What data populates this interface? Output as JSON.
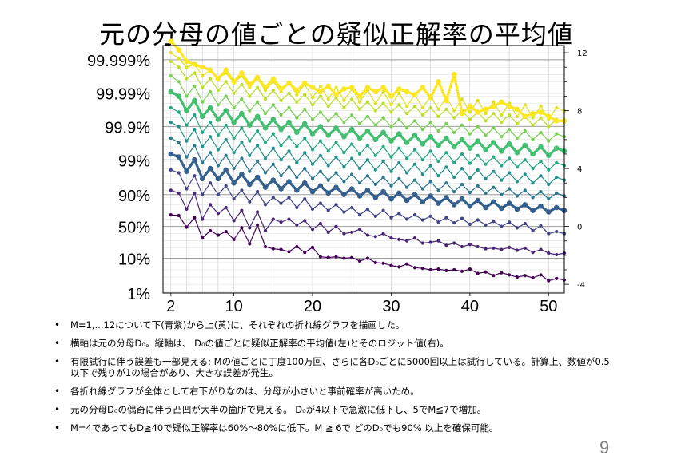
{
  "slide": {
    "title": "元の分母の値ごとの疑似正解率の平均値",
    "page_number": "9"
  },
  "bullets": [
    {
      "text": "M=1,..,12について下(青紫)から上(黄)に、それぞれの折れ線グラフを描画した。"
    },
    {
      "text": "横軸は元の分母D₀。縦軸は、 D₀の値ごとに疑似正解率の平均値(左)とそのロジット値(右)。"
    },
    {
      "text": "有限試行に伴う誤差も一部見える: Mの値ごとに丁度100万回、さらに各D₀ごとに5000回以上は試行している。計算上、数値が0.5以下で残りが1の場合があり、大きな誤差が発生。"
    },
    {
      "text": "各折れ線グラフが全体として右下がりなのは、分母が小さいと事前確率が高いため。"
    },
    {
      "text": "元の分母D₀の偶奇に伴う凸凹が大半の箇所で見える。 D₀が4以下で急激に低下し、5でM≦7で増加。"
    },
    {
      "text": "M=4であってもD≧40で疑似正解率は60%〜80%に低下。M ≧ 6で どのD₀でも90% 以上を確保可能。"
    }
  ],
  "chart_data": {
    "type": "line",
    "title": "元の分母の値ごとの疑似正解率の平均値",
    "x_tick_labels": [
      "2",
      "10",
      "20",
      "30",
      "40",
      "50"
    ],
    "xlim": [
      1,
      52
    ],
    "left_y_tick_labels": [
      "1%",
      "10%",
      "50%",
      "90%",
      "99%",
      "99.9%",
      "99.99%",
      "99.999%"
    ],
    "right_y_tick_labels": [
      "-4",
      "0",
      "4",
      "8",
      "12"
    ],
    "right_ylim": [
      -4.6,
      12.5
    ],
    "grid": true,
    "colors": [
      "#440154",
      "#482576",
      "#414487",
      "#35608d",
      "#2a788e",
      "#21918c",
      "#22a884",
      "#43bf71",
      "#7ad151",
      "#bddf26",
      "#dfe318",
      "#fde725"
    ],
    "series": [
      {
        "values": [
          0.8,
          0.75,
          -0.05,
          0.6,
          -0.8,
          -0.3,
          -0.6,
          -0.35,
          -0.9,
          -0.1,
          -1.2,
          0.1,
          -1.4,
          -1.55,
          -1.6,
          -1.75,
          -1.4,
          -1.8,
          -1.45,
          -2.1,
          -2.15,
          -2.1,
          -2.2,
          -2.15,
          -2.4,
          -2.2,
          -2.5,
          -2.55,
          -2.7,
          -2.8,
          -2.6,
          -2.85,
          -2.9,
          -3.0,
          -2.95,
          -3.05,
          -3.0,
          -3.1,
          -2.95,
          -3.25,
          -3.15,
          -3.4,
          -3.2,
          -3.35,
          -3.5,
          -3.4,
          -3.55,
          -3.35,
          -3.75,
          -3.6,
          -3.7
        ]
      },
      {
        "values": [
          2.5,
          2.3,
          1.2,
          2.3,
          0.5,
          1.5,
          0.9,
          1.3,
          0.4,
          1.1,
          -0.1,
          1.0,
          -0.3,
          0.5,
          0.3,
          0.5,
          0.1,
          0.4,
          -0.2,
          0.2,
          -0.4,
          0.0,
          -0.5,
          -0.4,
          -0.2,
          -0.6,
          -0.7,
          -0.5,
          -0.8,
          -0.9,
          -1.0,
          -0.8,
          -1.15,
          -1.1,
          -1.0,
          -1.3,
          -1.15,
          -1.4,
          -1.25,
          -1.4,
          -1.55,
          -1.5,
          -1.6,
          -1.45,
          -1.65,
          -1.5,
          -1.8,
          -1.6,
          -1.85,
          -1.95,
          -1.85
        ]
      },
      {
        "values": [
          3.9,
          3.7,
          2.6,
          3.5,
          2.2,
          3.0,
          2.2,
          2.8,
          1.9,
          2.5,
          1.7,
          2.4,
          1.5,
          2.0,
          1.6,
          2.0,
          1.3,
          1.9,
          1.2,
          1.6,
          1.1,
          1.5,
          1.0,
          1.3,
          0.8,
          1.2,
          0.7,
          1.1,
          0.6,
          0.9,
          0.5,
          0.8,
          0.45,
          0.7,
          0.3,
          0.6,
          0.25,
          0.55,
          0.15,
          0.45,
          0.1,
          0.35,
          0.0,
          0.3,
          -0.1,
          0.2,
          -0.3,
          0.05,
          -0.5,
          -0.35,
          -0.5
        ]
      },
      {
        "values": [
          5.0,
          4.8,
          3.8,
          4.6,
          3.3,
          4.0,
          3.3,
          3.9,
          3.0,
          3.6,
          2.9,
          3.4,
          2.7,
          3.2,
          2.6,
          3.1,
          2.5,
          3.0,
          2.4,
          2.8,
          2.3,
          2.7,
          2.2,
          2.6,
          2.1,
          2.5,
          2.0,
          2.4,
          1.9,
          2.3,
          1.8,
          2.2,
          1.7,
          2.1,
          1.6,
          2.0,
          1.5,
          1.9,
          1.4,
          1.8,
          1.3,
          1.7,
          1.25,
          1.6,
          1.2,
          1.5,
          1.1,
          1.4,
          1.0,
          1.3,
          1.1
        ]
      },
      {
        "values": [
          6.1,
          5.8,
          4.8,
          5.6,
          4.4,
          5.1,
          4.2,
          4.9,
          4.0,
          4.7,
          3.8,
          4.5,
          3.7,
          4.3,
          3.5,
          4.1,
          3.4,
          4.0,
          3.3,
          3.8,
          3.2,
          3.7,
          3.1,
          3.6,
          3.0,
          3.5,
          2.9,
          3.4,
          2.8,
          3.3,
          2.7,
          3.2,
          2.6,
          3.1,
          2.5,
          3.0,
          2.4,
          2.9,
          2.35,
          2.8,
          2.3,
          2.7,
          2.2,
          2.6,
          2.1,
          2.5,
          2.0,
          2.4,
          1.9,
          2.3,
          2.1
        ]
      },
      {
        "values": [
          7.2,
          6.9,
          5.9,
          6.7,
          5.5,
          6.2,
          5.3,
          6.0,
          5.1,
          5.8,
          4.9,
          5.6,
          4.7,
          5.4,
          4.6,
          5.2,
          4.4,
          5.1,
          4.3,
          4.9,
          4.2,
          4.8,
          4.1,
          4.7,
          4.0,
          4.6,
          3.9,
          4.5,
          3.8,
          4.4,
          3.7,
          4.3,
          3.6,
          4.2,
          3.5,
          4.1,
          3.4,
          4.0,
          3.35,
          3.9,
          3.3,
          3.8,
          3.2,
          3.7,
          3.1,
          3.6,
          3.0,
          3.5,
          2.9,
          3.4,
          3.2
        ]
      },
      {
        "values": [
          8.2,
          7.9,
          7.0,
          7.7,
          6.5,
          7.2,
          6.3,
          7.0,
          6.1,
          6.8,
          5.9,
          6.6,
          5.8,
          6.4,
          5.6,
          6.2,
          5.5,
          6.1,
          5.3,
          5.9,
          5.2,
          5.8,
          5.1,
          5.7,
          5.0,
          5.6,
          4.9,
          5.5,
          4.8,
          5.4,
          4.7,
          5.3,
          4.6,
          5.2,
          4.5,
          5.1,
          4.4,
          5.0,
          4.35,
          4.9,
          4.3,
          4.8,
          4.2,
          4.7,
          4.1,
          4.6,
          4.0,
          4.5,
          3.9,
          4.4,
          4.2
        ]
      },
      {
        "values": [
          9.3,
          9.0,
          8.0,
          8.7,
          7.6,
          8.2,
          7.4,
          8.0,
          7.2,
          7.8,
          7.0,
          7.6,
          6.8,
          7.4,
          6.7,
          7.2,
          6.5,
          7.1,
          6.4,
          6.9,
          6.3,
          6.8,
          6.2,
          6.7,
          6.1,
          6.6,
          6.0,
          6.5,
          5.9,
          6.4,
          5.8,
          6.3,
          5.7,
          6.2,
          5.6,
          6.1,
          5.5,
          6.0,
          5.4,
          5.9,
          5.3,
          5.8,
          5.2,
          5.7,
          5.1,
          5.6,
          5.0,
          5.5,
          4.9,
          5.4,
          5.2
        ]
      },
      {
        "values": [
          10.4,
          10.0,
          9.0,
          9.7,
          8.6,
          9.3,
          8.4,
          9.0,
          8.2,
          8.8,
          8.0,
          8.6,
          7.8,
          8.4,
          7.7,
          8.2,
          7.5,
          8.1,
          7.4,
          7.9,
          7.3,
          7.8,
          7.2,
          7.7,
          7.1,
          7.6,
          7.0,
          7.5,
          6.9,
          7.4,
          6.8,
          7.3,
          6.7,
          7.2,
          6.6,
          7.1,
          6.5,
          7.0,
          6.4,
          6.9,
          6.3,
          6.8,
          6.2,
          6.7,
          6.1,
          6.6,
          6.0,
          6.5,
          5.9,
          6.4,
          6.2
        ]
      },
      {
        "values": [
          11.4,
          11.0,
          10.2,
          10.6,
          9.6,
          10.2,
          9.4,
          10.0,
          9.2,
          9.8,
          9.0,
          9.6,
          8.8,
          9.4,
          8.7,
          9.2,
          8.6,
          9.1,
          8.4,
          9.0,
          8.3,
          8.9,
          8.2,
          8.8,
          8.1,
          8.6,
          8.0,
          8.5,
          7.9,
          8.4,
          7.8,
          8.3,
          7.7,
          8.2,
          7.6,
          8.1,
          7.5,
          8.0,
          7.4,
          7.9,
          7.3,
          7.8,
          7.2,
          7.7,
          7.1,
          7.6,
          7.0,
          7.5,
          6.9,
          7.4,
          7.2
        ]
      },
      {
        "values": [
          12.0,
          11.6,
          11.0,
          11.2,
          10.4,
          10.8,
          10.2,
          10.6,
          9.9,
          10.4,
          9.6,
          10.2,
          9.4,
          10.0,
          9.3,
          9.9,
          9.1,
          9.8,
          8.9,
          9.7,
          8.8,
          9.6,
          8.7,
          9.5,
          8.6,
          9.4,
          8.5,
          9.3,
          8.4,
          9.2,
          8.3,
          9.1,
          8.2,
          9.0,
          8.1,
          8.9,
          8.0,
          8.8,
          7.9,
          8.7,
          7.8,
          8.6,
          7.7,
          8.5,
          7.6,
          8.4,
          7.5,
          8.3,
          7.4,
          8.2,
          8.0
        ]
      },
      {
        "values": [
          12.8,
          12.2,
          11.4,
          11.2,
          11.0,
          10.8,
          10.2,
          10.8,
          10.0,
          10.6,
          9.8,
          10.3,
          9.6,
          10.2,
          9.5,
          9.9,
          9.4,
          9.9,
          9.6,
          9.3,
          9.7,
          9.1,
          9.5,
          9.6,
          9.0,
          9.6,
          9.3,
          9.6,
          9.0,
          9.5,
          9.3,
          9.1,
          9.6,
          8.9,
          10.0,
          8.7,
          10.5,
          7.8,
          8.3,
          7.9,
          8.1,
          8.3,
          8.6,
          8.3,
          8.1,
          7.6,
          7.8,
          7.9,
          7.6,
          7.3,
          7.3
        ]
      }
    ]
  }
}
